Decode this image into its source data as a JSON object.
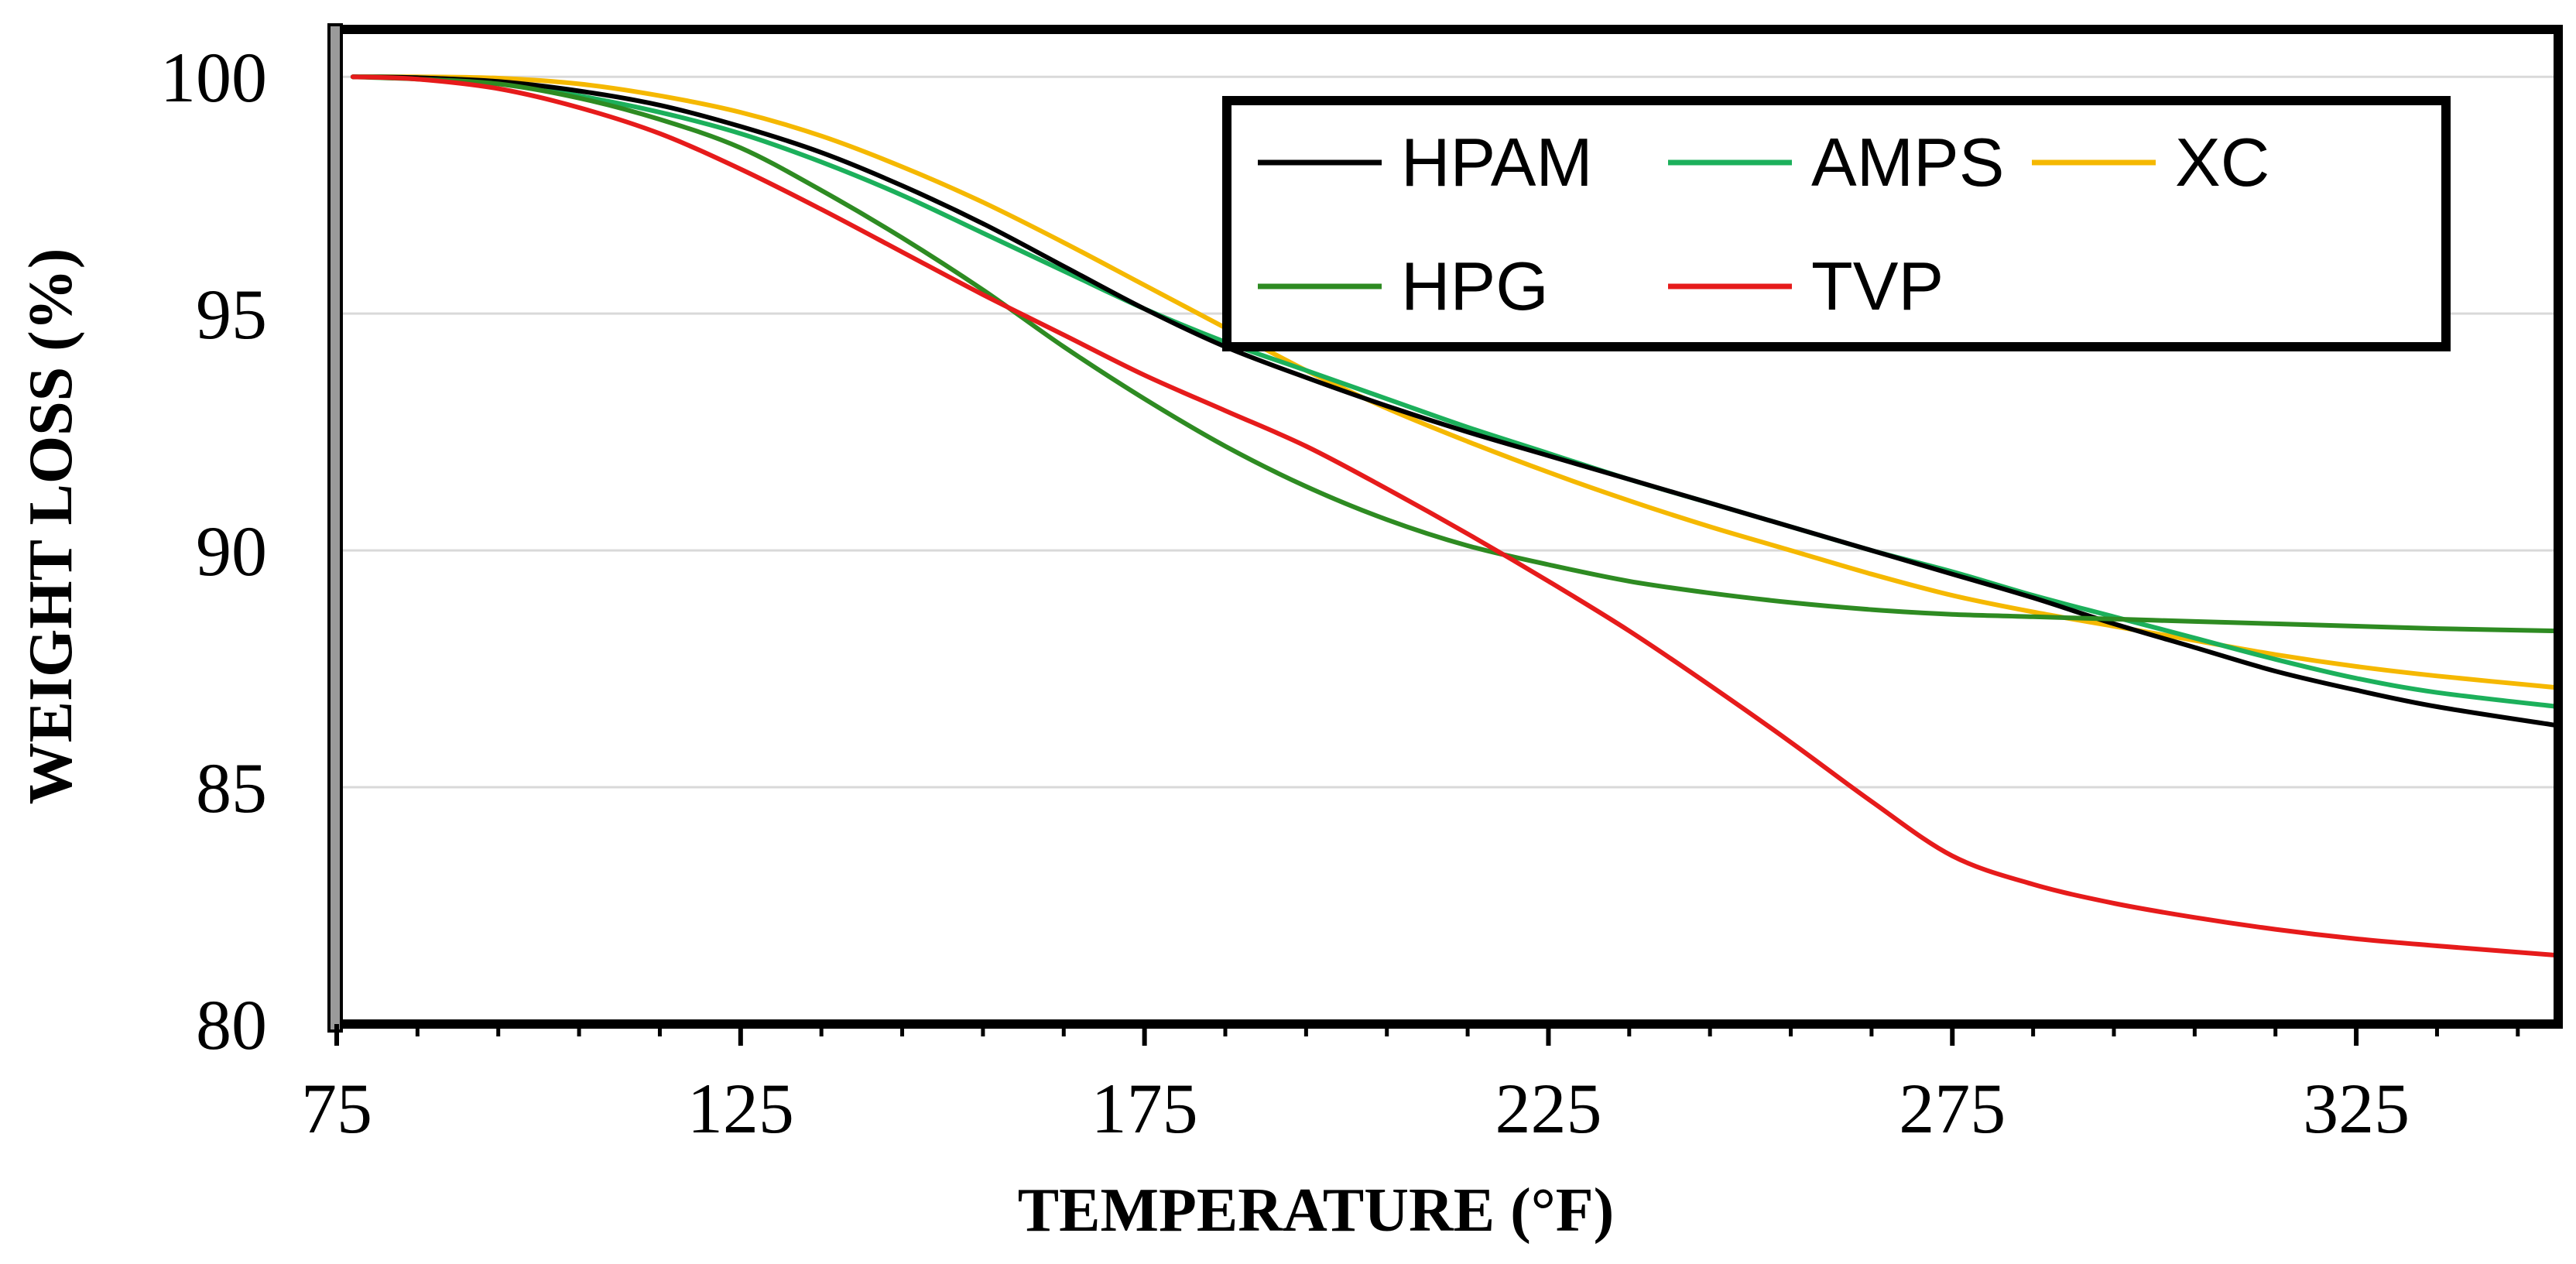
{
  "chart_data": {
    "type": "line",
    "title": "",
    "xlabel": "TEMPERATURE (°F)",
    "ylabel": "WEIGHT LOSS (%)",
    "xlim": [
      75,
      350
    ],
    "ylim": [
      80,
      101
    ],
    "x_ticks": [
      75,
      125,
      175,
      225,
      275,
      325
    ],
    "x_tick_labels": [
      "75",
      "125",
      "175",
      "225",
      "275",
      "325"
    ],
    "x_minor_step": 10,
    "y_ticks": [
      80,
      85,
      90,
      95,
      100
    ],
    "y_tick_labels": [
      "80",
      "85",
      "90",
      "95",
      "100"
    ],
    "grid": "horizontal",
    "legend_position": "top-right",
    "x": [
      77,
      85,
      95,
      105,
      115,
      125,
      135,
      145,
      155,
      165,
      175,
      185,
      195,
      205,
      215,
      225,
      235,
      245,
      255,
      265,
      275,
      285,
      295,
      305,
      315,
      325,
      335,
      350
    ],
    "series": [
      {
        "name": "HPAM",
        "color": "#000000",
        "values": [
          100,
          99.98,
          99.9,
          99.7,
          99.4,
          98.95,
          98.4,
          97.7,
          96.9,
          96.0,
          95.1,
          94.3,
          93.65,
          93.05,
          92.5,
          92.0,
          91.5,
          91.0,
          90.5,
          90.0,
          89.5,
          89.0,
          88.45,
          87.95,
          87.45,
          87.05,
          86.7,
          86.3
        ]
      },
      {
        "name": "AMPS",
        "color": "#1CB05B",
        "values": [
          100,
          99.98,
          99.88,
          99.6,
          99.25,
          98.8,
          98.2,
          97.5,
          96.7,
          95.9,
          95.1,
          94.4,
          93.8,
          93.2,
          92.6,
          92.05,
          91.5,
          91.0,
          90.5,
          90.0,
          89.55,
          89.05,
          88.6,
          88.15,
          87.7,
          87.3,
          87.0,
          86.7
        ]
      },
      {
        "name": "XC",
        "color": "#F5B800",
        "values": [
          100,
          100,
          99.97,
          99.85,
          99.6,
          99.25,
          98.75,
          98.1,
          97.35,
          96.5,
          95.6,
          94.7,
          93.8,
          93.0,
          92.3,
          91.65,
          91.05,
          90.5,
          90.0,
          89.5,
          89.05,
          88.7,
          88.4,
          88.1,
          87.8,
          87.55,
          87.35,
          87.1
        ]
      },
      {
        "name": "HPG",
        "color": "#2E8B22",
        "values": [
          100,
          99.95,
          99.85,
          99.55,
          99.1,
          98.5,
          97.6,
          96.6,
          95.5,
          94.3,
          93.2,
          92.2,
          91.35,
          90.65,
          90.1,
          89.7,
          89.35,
          89.1,
          88.9,
          88.75,
          88.65,
          88.6,
          88.55,
          88.5,
          88.45,
          88.4,
          88.35,
          88.3
        ]
      },
      {
        "name": "TVP",
        "color": "#E61B1B",
        "values": [
          100,
          99.95,
          99.75,
          99.35,
          98.8,
          98.05,
          97.2,
          96.3,
          95.4,
          94.55,
          93.7,
          92.95,
          92.2,
          91.3,
          90.35,
          89.35,
          88.3,
          87.15,
          85.95,
          84.7,
          83.55,
          82.95,
          82.55,
          82.25,
          82.0,
          81.8,
          81.65,
          81.45
        ]
      }
    ]
  }
}
